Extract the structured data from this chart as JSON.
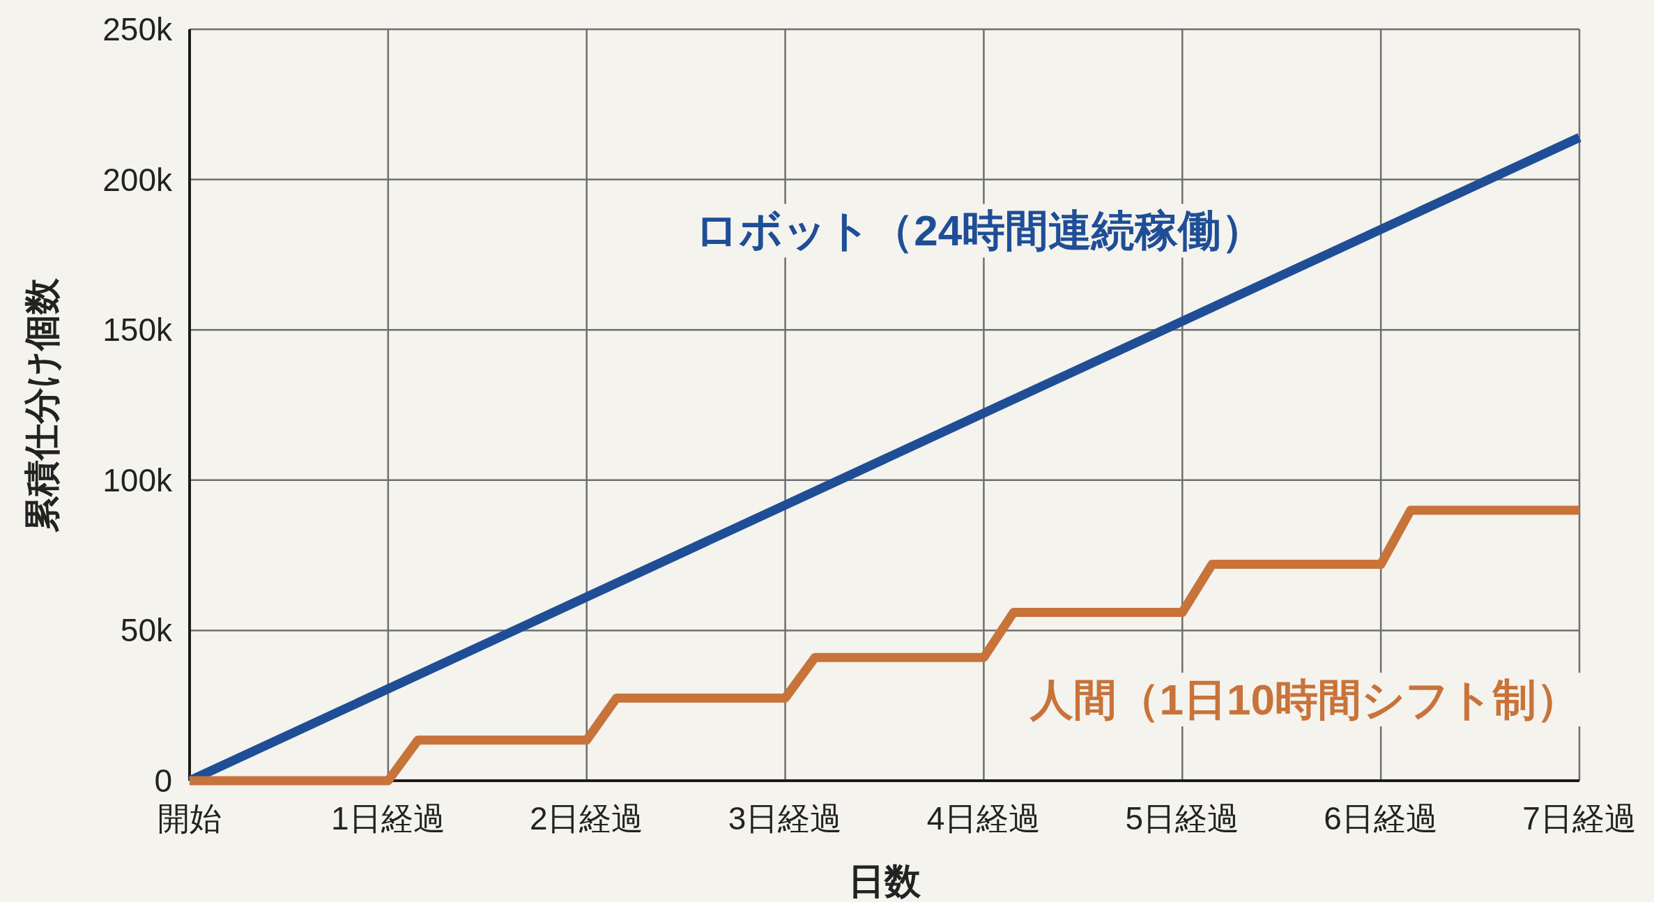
{
  "chart_data": {
    "type": "line",
    "xlabel": "日数",
    "ylabel": "累積仕分け個数",
    "xlim": [
      0,
      7
    ],
    "ylim": [
      0,
      250000
    ],
    "xticks": [
      {
        "value": 0,
        "label": "開始"
      },
      {
        "value": 1,
        "label": "1日経過"
      },
      {
        "value": 2,
        "label": "2日経過"
      },
      {
        "value": 3,
        "label": "3日経過"
      },
      {
        "value": 4,
        "label": "4日経過"
      },
      {
        "value": 5,
        "label": "5日経過"
      },
      {
        "value": 6,
        "label": "6日経過"
      },
      {
        "value": 7,
        "label": "7日経過"
      }
    ],
    "yticks": [
      {
        "value": 0,
        "label": "0"
      },
      {
        "value": 50000,
        "label": "50k"
      },
      {
        "value": 100000,
        "label": "100k"
      },
      {
        "value": 150000,
        "label": "150k"
      },
      {
        "value": 200000,
        "label": "200k"
      },
      {
        "value": 250000,
        "label": "250k"
      }
    ],
    "grid": true,
    "series": [
      {
        "name": "ロボット（24時間連続稼働）",
        "color": "#1f4e96",
        "x": [
          0,
          7
        ],
        "values": [
          0,
          214000
        ]
      },
      {
        "name": "人間（1日10時間シフト制）",
        "color": "#c8733a",
        "x": [
          0,
          1,
          1.15,
          2,
          2.15,
          3,
          3.15,
          4,
          4.15,
          5,
          5.15,
          6,
          6.15,
          7
        ],
        "values": [
          0,
          0,
          13500,
          13500,
          27500,
          27500,
          41000,
          41000,
          56000,
          56000,
          72000,
          72000,
          90000,
          90000
        ]
      }
    ]
  }
}
